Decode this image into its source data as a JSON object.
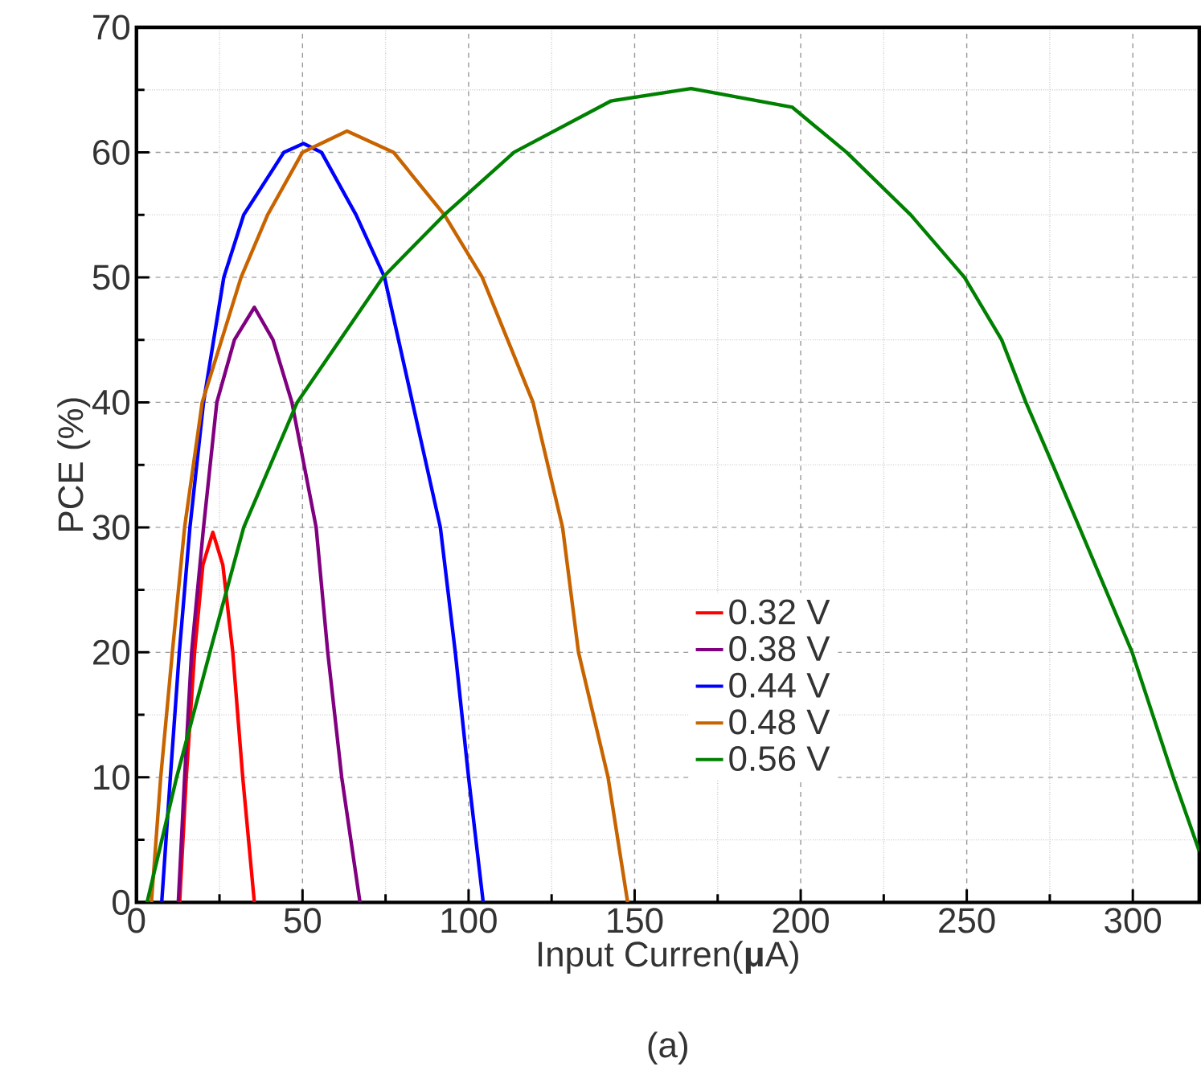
{
  "chart_data": {
    "type": "line",
    "xlabel": "Input Curren(**μ**A)",
    "ylabel": "PCE (%)",
    "annotations": [
      "(a)"
    ],
    "xlim": [
      0,
      320
    ],
    "ylim": [
      0,
      70
    ],
    "xticks": [
      0,
      50,
      100,
      150,
      200,
      250,
      300
    ],
    "yticks": [
      0,
      10,
      20,
      30,
      40,
      50,
      60,
      70
    ],
    "grid": true,
    "legend": "center",
    "line_style": "solid",
    "marker": "none",
    "series": [
      {
        "name": "0.32 V",
        "color": "#ff0000",
        "x": [
          13,
          15,
          17.5,
          20,
          23,
          26,
          29,
          32,
          35.5
        ],
        "values": [
          0,
          10,
          20,
          27,
          29.6,
          27,
          20,
          10,
          0
        ]
      },
      {
        "name": "0.38 V",
        "color": "#800080",
        "x": [
          12.6,
          14.5,
          16.6,
          20.2,
          24.2,
          29.5,
          35.5,
          41.1,
          46.8,
          54.1,
          57.6,
          61.8,
          67.3
        ],
        "values": [
          0,
          10,
          20,
          30,
          40,
          45,
          47.6,
          45,
          40,
          30,
          20,
          10,
          0
        ]
      },
      {
        "name": "0.44 V",
        "color": "#0000ff",
        "x": [
          7.6,
          10.2,
          12.9,
          16.1,
          20.2,
          26.3,
          32.3,
          44.4,
          50.3,
          55.7,
          66.1,
          74.7,
          83.1,
          91.5,
          96,
          100,
          104.4
        ],
        "values": [
          0,
          10,
          20,
          30,
          40,
          50,
          55,
          60,
          60.7,
          60,
          55,
          50,
          40,
          30,
          20,
          10,
          0
        ]
      },
      {
        "name": "0.48 V",
        "color": "#c86400",
        "x": [
          4.5,
          7.3,
          10.8,
          14.5,
          19.8,
          31.5,
          39.5,
          50,
          63.4,
          77.4,
          92.7,
          104.1,
          119.4,
          128.3,
          133.1,
          142,
          147.9
        ],
        "values": [
          0,
          10,
          20,
          30,
          40,
          50,
          55,
          60,
          61.7,
          60,
          55,
          50,
          40,
          30,
          20,
          10,
          0
        ]
      },
      {
        "name": "0.56 V",
        "color": "#008000",
        "x": [
          3.2,
          12.1,
          22.1,
          32.3,
          48.4,
          74.2,
          92.7,
          113.7,
          142.8,
          167,
          197.5,
          213.8,
          233.1,
          249.3,
          260.5,
          267.8,
          275.9,
          283.9,
          299.8,
          312.2,
          320
        ],
        "values": [
          0,
          10,
          20,
          30,
          40,
          50,
          55,
          60,
          64.1,
          65.1,
          63.6,
          60,
          55,
          50,
          45,
          40,
          35,
          30,
          20,
          10,
          4.1
        ]
      }
    ]
  }
}
